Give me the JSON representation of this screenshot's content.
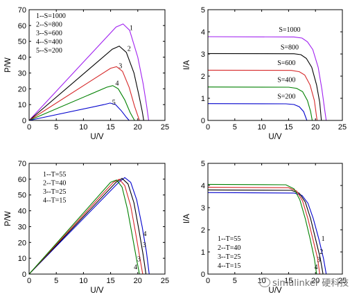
{
  "watermark": {
    "text": "simulinker 硬科技",
    "icon": "wechat-icon"
  },
  "chart_data": [
    {
      "type": "line",
      "xlabel": "U/V",
      "ylabel": "P/W",
      "xlim": [
        0,
        25
      ],
      "ylim": [
        0,
        70
      ],
      "xticks": [
        0,
        5,
        10,
        15,
        20,
        25
      ],
      "yticks": [
        0,
        10,
        20,
        30,
        40,
        50,
        60,
        70
      ],
      "legend": {
        "placement": "top-left",
        "entries": [
          "1--S=1000",
          "2--S=800",
          "3--S=600",
          "4--S=400",
          "5--S=200"
        ]
      },
      "series": [
        {
          "name": "1",
          "color": "#a020f0",
          "points": [
            [
              0,
              0
            ],
            [
              16,
              59
            ],
            [
              17.3,
              61
            ],
            [
              18.5,
              57
            ],
            [
              20,
              40
            ],
            [
              21,
              23
            ],
            [
              21.6,
              10
            ],
            [
              22,
              0
            ]
          ]
        },
        {
          "name": "2",
          "color": "#000000",
          "points": [
            [
              0,
              0
            ],
            [
              15.3,
              45
            ],
            [
              16.6,
              47
            ],
            [
              17.9,
              43
            ],
            [
              19.3,
              30
            ],
            [
              20.2,
              16
            ],
            [
              20.8,
              6
            ],
            [
              21.1,
              0
            ]
          ]
        },
        {
          "name": "3",
          "color": "#d62728",
          "points": [
            [
              0,
              0
            ],
            [
              15,
              33
            ],
            [
              16.1,
              34
            ],
            [
              17.2,
              31
            ],
            [
              18.4,
              21
            ],
            [
              19.4,
              9
            ],
            [
              20.3,
              0
            ]
          ]
        },
        {
          "name": "4",
          "color": "#008000",
          "points": [
            [
              0,
              0
            ],
            [
              14.3,
              21
            ],
            [
              15.4,
              22
            ],
            [
              16.4,
              20
            ],
            [
              17.6,
              13
            ],
            [
              18.6,
              5
            ],
            [
              19.4,
              0
            ]
          ]
        },
        {
          "name": "5",
          "color": "#0000cd",
          "points": [
            [
              0,
              0
            ],
            [
              13.8,
              10
            ],
            [
              14.9,
              11
            ],
            [
              15.9,
              10
            ],
            [
              17,
              6
            ],
            [
              17.9,
              2
            ],
            [
              18.4,
              0
            ]
          ]
        }
      ],
      "curve_labels": [
        {
          "text": "1",
          "x": 18.8,
          "y": 57
        },
        {
          "text": "2",
          "x": 18.4,
          "y": 44
        },
        {
          "text": "3",
          "x": 16.8,
          "y": 33
        },
        {
          "text": "4",
          "x": 16.2,
          "y": 22
        },
        {
          "text": "5",
          "x": 15.6,
          "y": 10
        }
      ]
    },
    {
      "type": "line",
      "xlabel": "U/V",
      "ylabel": "I/A",
      "xlim": [
        0,
        25
      ],
      "ylim": [
        0,
        5
      ],
      "xticks": [
        0,
        5,
        10,
        15,
        20,
        25
      ],
      "yticks": [
        0,
        1,
        2,
        3,
        4,
        5
      ],
      "series": [
        {
          "name": "S=1000",
          "color": "#a020f0",
          "points": [
            [
              0,
              3.78
            ],
            [
              16,
              3.77
            ],
            [
              17.5,
              3.72
            ],
            [
              18.5,
              3.55
            ],
            [
              19.5,
              3.2
            ],
            [
              20.5,
              2.4
            ],
            [
              21.2,
              1.4
            ],
            [
              21.7,
              0.5
            ],
            [
              22,
              0
            ]
          ]
        },
        {
          "name": "S=800",
          "color": "#000000",
          "points": [
            [
              0,
              3.02
            ],
            [
              16,
              3.01
            ],
            [
              17.3,
              2.97
            ],
            [
              18.3,
              2.8
            ],
            [
              19.3,
              2.4
            ],
            [
              20.2,
              1.6
            ],
            [
              20.8,
              0.8
            ],
            [
              21.1,
              0
            ]
          ]
        },
        {
          "name": "S=600",
          "color": "#d62728",
          "points": [
            [
              0,
              2.27
            ],
            [
              15.5,
              2.26
            ],
            [
              17,
              2.2
            ],
            [
              18,
              2.05
            ],
            [
              19,
              1.6
            ],
            [
              19.8,
              0.9
            ],
            [
              20.3,
              0
            ]
          ]
        },
        {
          "name": "S=400",
          "color": "#008000",
          "points": [
            [
              0,
              1.51
            ],
            [
              15,
              1.5
            ],
            [
              16.5,
              1.45
            ],
            [
              17.6,
              1.3
            ],
            [
              18.5,
              0.9
            ],
            [
              19.1,
              0.4
            ],
            [
              19.4,
              0
            ]
          ]
        },
        {
          "name": "S=200",
          "color": "#0000cd",
          "points": [
            [
              0,
              0.76
            ],
            [
              14.5,
              0.75
            ],
            [
              16,
              0.72
            ],
            [
              17,
              0.62
            ],
            [
              17.8,
              0.4
            ],
            [
              18.4,
              0
            ]
          ]
        }
      ],
      "curve_labels": [
        {
          "text": "S=1000",
          "x": 15.2,
          "y": 4.0
        },
        {
          "text": "S=800",
          "x": 15.2,
          "y": 3.2
        },
        {
          "text": "S=600",
          "x": 14.6,
          "y": 2.5
        },
        {
          "text": "S=400",
          "x": 14.6,
          "y": 1.73
        },
        {
          "text": "S=200",
          "x": 14.6,
          "y": 0.98
        }
      ]
    },
    {
      "type": "line",
      "xlabel": "U/V",
      "ylabel": "P/W",
      "xlim": [
        0,
        25
      ],
      "ylim": [
        0,
        70
      ],
      "xticks": [
        0,
        5,
        10,
        15,
        20,
        25
      ],
      "yticks": [
        0,
        10,
        20,
        30,
        40,
        50,
        60,
        70
      ],
      "legend": {
        "placement": "top-left",
        "entries": [
          "1--T=55",
          "2--T=40",
          "3--T=25",
          "4--T=15"
        ]
      },
      "series": [
        {
          "name": "1",
          "color": "#0000cd",
          "points": [
            [
              0,
              0
            ],
            [
              16.5,
              58
            ],
            [
              17.6,
              61
            ],
            [
              18.7,
              58
            ],
            [
              19.8,
              47
            ],
            [
              20.8,
              30
            ],
            [
              21.6,
              14
            ],
            [
              22.1,
              0
            ]
          ]
        },
        {
          "name": "2",
          "color": "#000000",
          "points": [
            [
              0,
              0
            ],
            [
              16,
              58
            ],
            [
              17.1,
              60.5
            ],
            [
              18.2,
              57
            ],
            [
              19.3,
              45
            ],
            [
              20.2,
              28
            ],
            [
              21,
              12
            ],
            [
              21.5,
              0
            ]
          ]
        },
        {
          "name": "3",
          "color": "#d62728",
          "points": [
            [
              0,
              0
            ],
            [
              15.5,
              58
            ],
            [
              16.6,
              60
            ],
            [
              17.6,
              56
            ],
            [
              18.7,
              43
            ],
            [
              19.6,
              26
            ],
            [
              20.4,
              10
            ],
            [
              20.9,
              0
            ]
          ]
        },
        {
          "name": "4",
          "color": "#008000",
          "points": [
            [
              0,
              0
            ],
            [
              15,
              58
            ],
            [
              16.1,
              59.5
            ],
            [
              17.1,
              55
            ],
            [
              18.1,
              41
            ],
            [
              19,
              24
            ],
            [
              19.8,
              9
            ],
            [
              20.3,
              0
            ]
          ]
        }
      ],
      "curve_labels": [
        {
          "text": "4",
          "x": 21.3,
          "y": 24
        },
        {
          "text": "3",
          "x": 21.2,
          "y": 17
        },
        {
          "text": "3",
          "x": 20.2,
          "y": 8
        },
        {
          "text": "4",
          "x": 19.6,
          "y": 3
        }
      ]
    },
    {
      "type": "line",
      "xlabel": "U/V",
      "ylabel": "I/A",
      "xlim": [
        0,
        25
      ],
      "ylim": [
        0,
        5
      ],
      "xticks": [
        0,
        5,
        10,
        15,
        20,
        25
      ],
      "yticks": [
        0,
        1,
        2,
        3,
        4,
        5
      ],
      "legend": {
        "placement": "bottom-left",
        "entries": [
          "1--T=55",
          "2--T=40",
          "3--T=25",
          "4--T=15"
        ]
      },
      "series": [
        {
          "name": "1",
          "color": "#0000cd",
          "points": [
            [
              0,
              3.68
            ],
            [
              16,
              3.66
            ],
            [
              17.5,
              3.55
            ],
            [
              18.6,
              3.2
            ],
            [
              19.6,
              2.5
            ],
            [
              20.6,
              1.6
            ],
            [
              21.5,
              0.7
            ],
            [
              22,
              0
            ]
          ]
        },
        {
          "name": "2",
          "color": "#000000",
          "points": [
            [
              0,
              3.8
            ],
            [
              15.5,
              3.78
            ],
            [
              17,
              3.65
            ],
            [
              18.1,
              3.25
            ],
            [
              19.1,
              2.5
            ],
            [
              20,
              1.6
            ],
            [
              20.9,
              0.7
            ],
            [
              21.4,
              0
            ]
          ]
        },
        {
          "name": "3",
          "color": "#d62728",
          "points": [
            [
              0,
              3.92
            ],
            [
              15,
              3.9
            ],
            [
              16.5,
              3.75
            ],
            [
              17.6,
              3.3
            ],
            [
              18.6,
              2.5
            ],
            [
              19.5,
              1.6
            ],
            [
              20.4,
              0.7
            ],
            [
              20.8,
              0
            ]
          ]
        },
        {
          "name": "4",
          "color": "#008000",
          "points": [
            [
              0,
              4.05
            ],
            [
              14.5,
              4.03
            ],
            [
              16,
              3.85
            ],
            [
              17.1,
              3.35
            ],
            [
              18.1,
              2.5
            ],
            [
              19,
              1.6
            ],
            [
              19.8,
              0.7
            ],
            [
              20.2,
              0
            ]
          ]
        }
      ],
      "curve_labels": [
        {
          "text": "1",
          "x": 21.4,
          "y": 1.5
        },
        {
          "text": "2",
          "x": 21.1,
          "y": 0.9
        },
        {
          "text": "3",
          "x": 20.6,
          "y": 0.55
        },
        {
          "text": "4",
          "x": 20.1,
          "y": 0.22
        }
      ]
    }
  ]
}
